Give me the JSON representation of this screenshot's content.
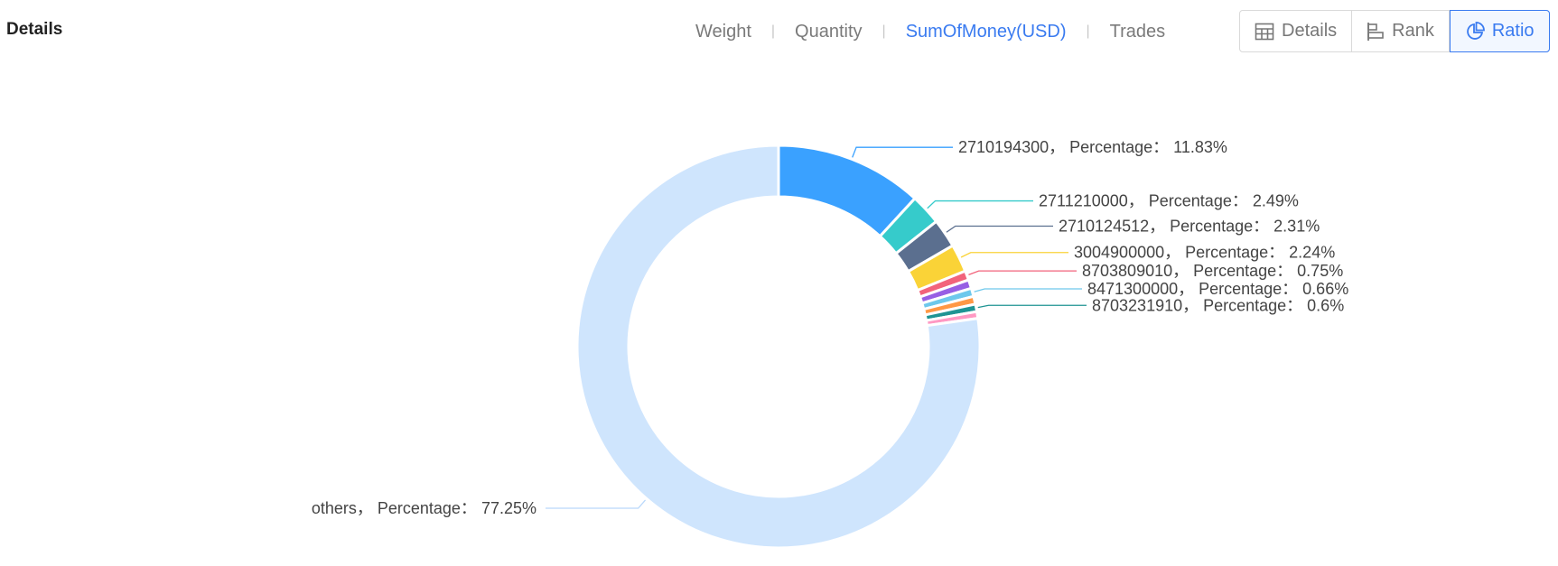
{
  "header": {
    "title": "Details"
  },
  "metric_tabs": [
    {
      "label": "Weight",
      "active": false
    },
    {
      "label": "Quantity",
      "active": false
    },
    {
      "label": "SumOfMoney(USD)",
      "active": true
    },
    {
      "label": "Trades",
      "active": false
    }
  ],
  "view_toggle": [
    {
      "label": "Details",
      "icon": "table-icon",
      "active": false
    },
    {
      "label": "Rank",
      "icon": "rank-bars-icon",
      "active": false
    },
    {
      "label": "Ratio",
      "icon": "pie-chart-icon",
      "active": true
    }
  ],
  "chart_data": {
    "type": "pie",
    "style": "donut",
    "label_format": "{name}， Percentage： {pct}%",
    "slices": [
      {
        "name": "2710194300",
        "pct": 11.83,
        "color": "#3aa1ff",
        "labeled": true
      },
      {
        "name": "2711210000",
        "pct": 2.49,
        "color": "#36cbcb",
        "labeled": true
      },
      {
        "name": "2710124512",
        "pct": 2.31,
        "color": "#5b6f8f",
        "labeled": true
      },
      {
        "name": "3004900000",
        "pct": 2.24,
        "color": "#fad337",
        "labeled": true
      },
      {
        "name": "8703809010",
        "pct": 0.75,
        "color": "#f2637b",
        "labeled": true
      },
      {
        "name": "",
        "pct": 0.7,
        "color": "#975fe4",
        "labeled": false
      },
      {
        "name": "8471300000",
        "pct": 0.66,
        "color": "#6dc8ec",
        "labeled": true
      },
      {
        "name": "",
        "pct": 0.63,
        "color": "#ff9845",
        "labeled": false
      },
      {
        "name": "8703231910",
        "pct": 0.6,
        "color": "#1e9493",
        "labeled": true
      },
      {
        "name": "",
        "pct": 0.54,
        "color": "#ff99c3",
        "labeled": false
      },
      {
        "name": "others",
        "pct": 77.25,
        "color": "#cfe5fd",
        "labeled": true
      }
    ]
  }
}
